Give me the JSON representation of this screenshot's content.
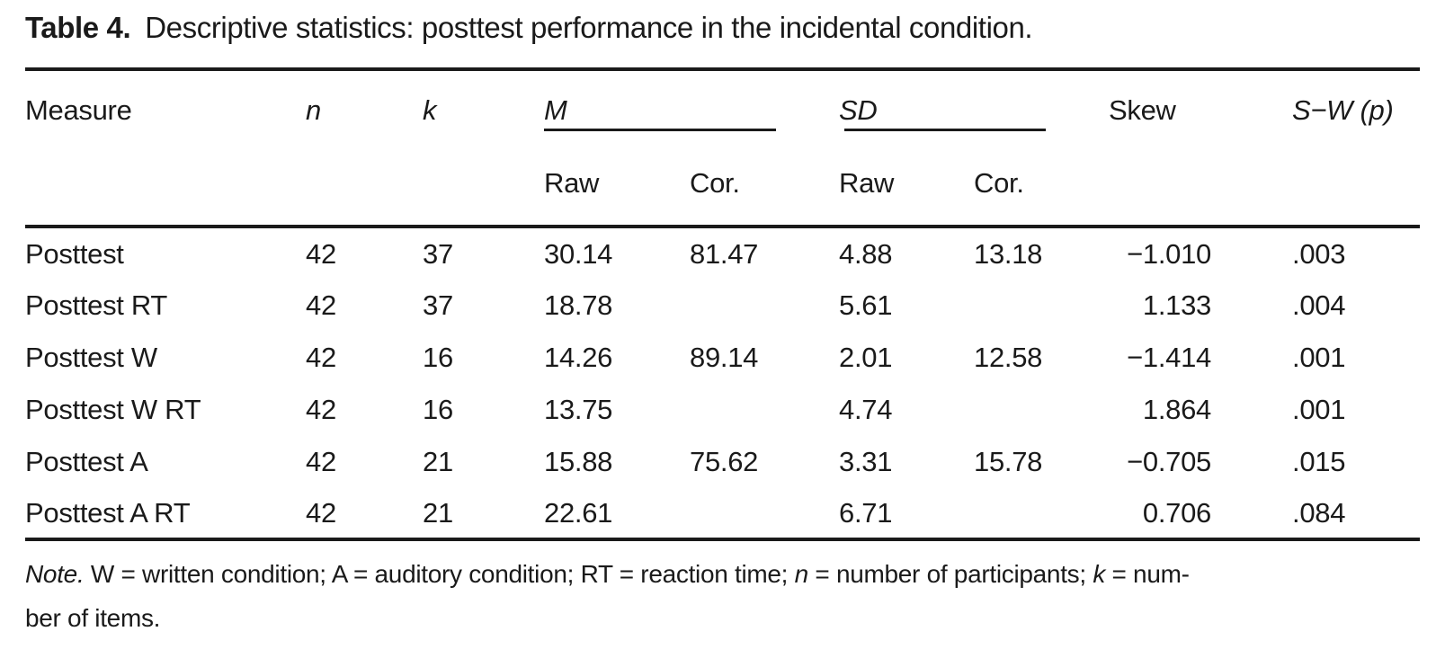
{
  "title": {
    "label": "Table 4.",
    "text": "Descriptive statistics: posttest performance in the incidental condition."
  },
  "table": {
    "headers": {
      "measure": "Measure",
      "n": "n",
      "k": "k",
      "m": "M",
      "sd": "SD",
      "raw1": "Raw",
      "cor1": "Cor.",
      "raw2": "Raw",
      "cor2": "Cor.",
      "skew": "Skew",
      "sw_prefix": "S−W (",
      "sw_p": "p",
      "sw_suffix": ")"
    },
    "rows": [
      {
        "measure": "Posttest",
        "n": "42",
        "k": "37",
        "m_raw": "30.14",
        "m_cor": "81.47",
        "sd_raw": "4.88",
        "sd_cor": "13.18",
        "skew": "−1.010",
        "sw": ".003"
      },
      {
        "measure": "Posttest RT",
        "n": "42",
        "k": "37",
        "m_raw": "18.78",
        "m_cor": "",
        "sd_raw": "5.61",
        "sd_cor": "",
        "skew": "1.133",
        "sw": ".004"
      },
      {
        "measure": "Posttest W",
        "n": "42",
        "k": "16",
        "m_raw": "14.26",
        "m_cor": "89.14",
        "sd_raw": "2.01",
        "sd_cor": "12.58",
        "skew": "−1.414",
        "sw": ".001"
      },
      {
        "measure": "Posttest W RT",
        "n": "42",
        "k": "16",
        "m_raw": "13.75",
        "m_cor": "",
        "sd_raw": "4.74",
        "sd_cor": "",
        "skew": "1.864",
        "sw": ".001"
      },
      {
        "measure": "Posttest A",
        "n": "42",
        "k": "21",
        "m_raw": "15.88",
        "m_cor": "75.62",
        "sd_raw": "3.31",
        "sd_cor": "15.78",
        "skew": "−0.705",
        "sw": ".015"
      },
      {
        "measure": "Posttest A RT",
        "n": "42",
        "k": "21",
        "m_raw": "22.61",
        "m_cor": "",
        "sd_raw": "6.71",
        "sd_cor": "",
        "skew": "0.706",
        "sw": ".084"
      }
    ]
  },
  "note": {
    "line1": [
      {
        "text": "Note.",
        "italic": true
      },
      {
        "text": " W = written condition; A = auditory condition; RT = reaction time; ",
        "italic": false
      },
      {
        "text": "n",
        "italic": true
      },
      {
        "text": " = number of participants; ",
        "italic": false
      },
      {
        "text": "k",
        "italic": true
      },
      {
        "text": " = num-",
        "italic": false
      }
    ],
    "line2": [
      {
        "text": "ber of items.",
        "italic": false
      }
    ]
  },
  "colors": {
    "text": "#1a1a1a",
    "rule": "#1a1a1a",
    "background": "#ffffff"
  }
}
